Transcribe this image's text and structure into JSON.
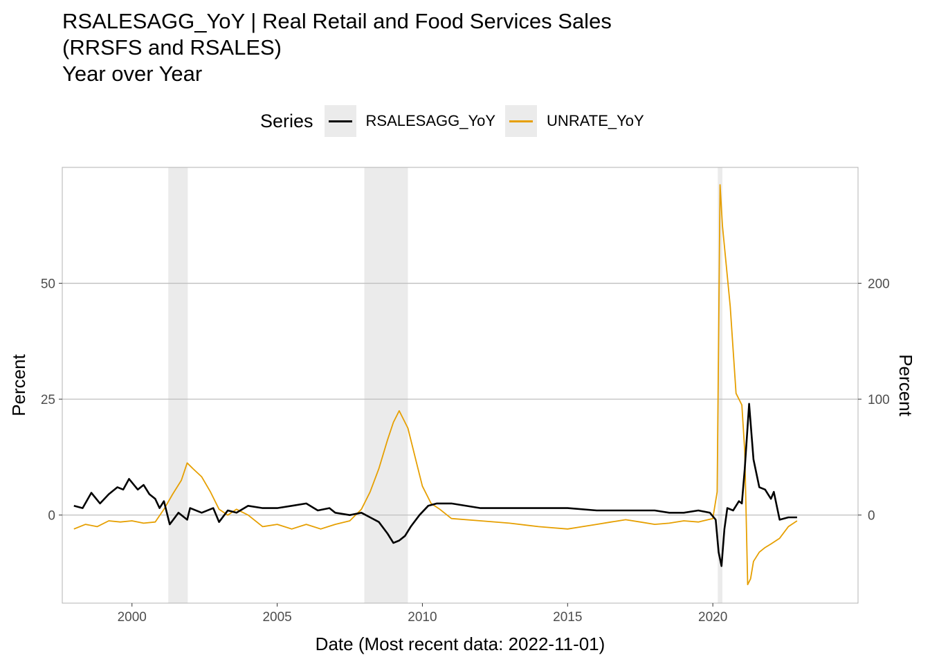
{
  "title_lines": [
    "RSALESAGG_YoY | Real Retail and Food Services Sales",
    "(RRSFS and RSALES)",
    "Year over Year"
  ],
  "chart_data": {
    "type": "line",
    "title": "RSALESAGG_YoY | Real Retail and Food Services Sales (RRSFS and RSALES) Year over Year",
    "xlabel": "Date (Most recent data: 2022-11-01)",
    "ylabel": "Percent",
    "y2label": "Percent",
    "legend_title": "Series",
    "legend_position": "top",
    "grid": "horizontal major",
    "xlim": [
      1997.6,
      2025.0
    ],
    "ylim": [
      -19,
      75
    ],
    "y2lim": [
      -76,
      300
    ],
    "x_ticks": [
      2000,
      2005,
      2010,
      2015,
      2020
    ],
    "y_ticks": [
      0,
      25,
      50
    ],
    "y2_ticks": [
      0,
      100,
      200
    ],
    "colors": {
      "RSALESAGG_YoY": "#000000",
      "UNRATE_YoY": "#E69F00",
      "recession": "#ebebeb",
      "grid": "#bebebe"
    },
    "recessions": [
      [
        2001.25,
        2001.92
      ],
      [
        2008.0,
        2009.5
      ],
      [
        2020.17,
        2020.33
      ]
    ],
    "series": [
      {
        "name": "RSALESAGG_YoY",
        "axis": "left",
        "x": [
          1998.0,
          1998.3,
          1998.6,
          1998.9,
          1999.2,
          1999.5,
          1999.7,
          1999.9,
          2000.2,
          2000.4,
          2000.6,
          2000.8,
          2000.95,
          2001.1,
          2001.3,
          2001.6,
          2001.8,
          2001.9,
          2002.0,
          2002.4,
          2002.8,
          2003.0,
          2003.3,
          2003.6,
          2004.0,
          2004.5,
          2005.0,
          2005.5,
          2006.0,
          2006.4,
          2006.8,
          2007.0,
          2007.5,
          2007.9,
          2008.2,
          2008.5,
          2008.8,
          2009.0,
          2009.2,
          2009.4,
          2009.6,
          2009.9,
          2010.2,
          2010.5,
          2011.0,
          2012.0,
          2013.0,
          2014.0,
          2015.0,
          2016.0,
          2017.0,
          2018.0,
          2018.5,
          2019.0,
          2019.5,
          2019.9,
          2020.1,
          2020.2,
          2020.3,
          2020.4,
          2020.5,
          2020.7,
          2020.9,
          2021.0,
          2021.1,
          2021.25,
          2021.4,
          2021.6,
          2021.8,
          2022.0,
          2022.1,
          2022.3,
          2022.6,
          2022.9
        ],
        "values": [
          2.0,
          1.5,
          4.8,
          2.5,
          4.5,
          6.0,
          5.5,
          7.8,
          5.5,
          6.5,
          4.5,
          3.5,
          1.5,
          3.0,
          -2.0,
          0.5,
          -0.5,
          -1.0,
          1.5,
          0.5,
          1.5,
          -1.5,
          1.0,
          0.5,
          2.0,
          1.5,
          1.5,
          2.0,
          2.5,
          1.0,
          1.5,
          0.5,
          0.0,
          0.5,
          -0.5,
          -1.5,
          -4.0,
          -6.0,
          -5.5,
          -4.5,
          -2.5,
          0.0,
          2.0,
          2.5,
          2.5,
          1.5,
          1.5,
          1.5,
          1.5,
          1.0,
          1.0,
          1.0,
          0.5,
          0.5,
          1.0,
          0.5,
          -1.0,
          -8.0,
          -11.0,
          -3.0,
          1.5,
          1.0,
          3.0,
          2.5,
          10.0,
          24.0,
          12.0,
          6.0,
          5.5,
          3.5,
          5.0,
          -1.0,
          -0.5,
          -0.5
        ]
      },
      {
        "name": "UNRATE_YoY",
        "axis": "right",
        "x": [
          1998.0,
          1998.4,
          1998.8,
          1999.2,
          1999.6,
          2000.0,
          2000.4,
          2000.8,
          2001.1,
          2001.4,
          2001.7,
          2001.9,
          2002.1,
          2002.4,
          2002.7,
          2003.0,
          2003.3,
          2003.6,
          2004.0,
          2004.5,
          2005.0,
          2005.5,
          2006.0,
          2006.5,
          2007.0,
          2007.5,
          2007.9,
          2008.2,
          2008.5,
          2008.8,
          2009.0,
          2009.2,
          2009.5,
          2009.8,
          2010.0,
          2010.3,
          2010.6,
          2011.0,
          2012.0,
          2013.0,
          2014.0,
          2015.0,
          2016.0,
          2016.5,
          2017.0,
          2017.5,
          2018.0,
          2018.5,
          2019.0,
          2019.5,
          2020.0,
          2020.15,
          2020.25,
          2020.33,
          2020.6,
          2020.8,
          2021.0,
          2021.1,
          2021.2,
          2021.3,
          2021.4,
          2021.6,
          2021.8,
          2022.0,
          2022.3,
          2022.6,
          2022.9
        ],
        "values": [
          -12,
          -8,
          -10,
          -5,
          -6,
          -5,
          -7,
          -6,
          5,
          18,
          30,
          45,
          40,
          33,
          20,
          5,
          0,
          5,
          0,
          -10,
          -8,
          -12,
          -8,
          -12,
          -8,
          -5,
          5,
          20,
          40,
          65,
          80,
          90,
          75,
          45,
          25,
          10,
          5,
          -3,
          -5,
          -7,
          -10,
          -12,
          -8,
          -6,
          -4,
          -6,
          -8,
          -7,
          -5,
          -6,
          -3,
          20,
          285,
          250,
          180,
          105,
          95,
          55,
          -60,
          -55,
          -40,
          -32,
          -28,
          -25,
          -20,
          -10,
          -5
        ]
      }
    ]
  }
}
